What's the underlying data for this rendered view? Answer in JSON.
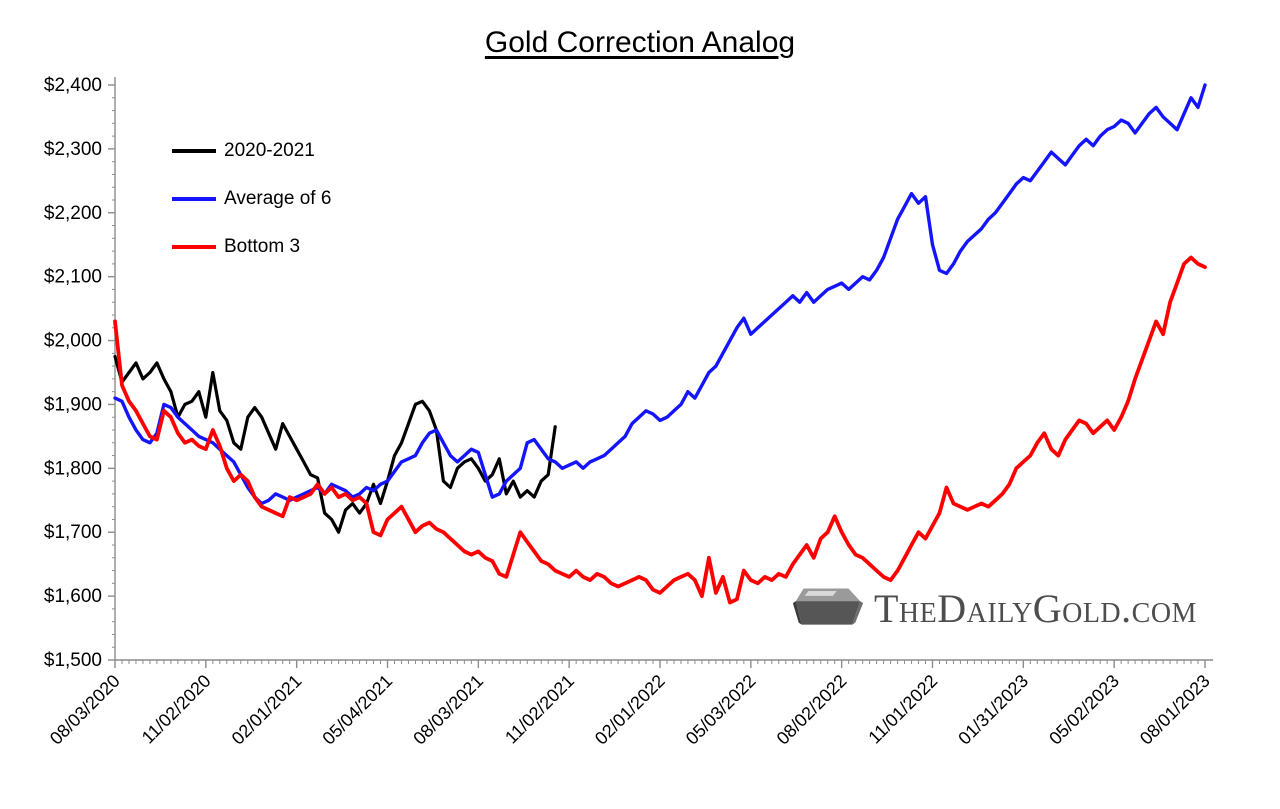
{
  "title": "Gold Correction Analog",
  "legend": [
    {
      "label": "2020-2021",
      "color": "#000000"
    },
    {
      "label": "Average of 6",
      "color": "#1414ff"
    },
    {
      "label": "Bottom 3",
      "color": "#ff0000"
    }
  ],
  "watermark": {
    "text": "TheDailyGold.com"
  },
  "chart_data": {
    "type": "line",
    "title": "Gold Correction Analog",
    "xlabel": "",
    "ylabel": "",
    "grid": false,
    "legend_position": "upper-left-inside",
    "ylim": [
      1500,
      2400
    ],
    "y_ticks": [
      1500,
      1600,
      1700,
      1800,
      1900,
      2000,
      2100,
      2200,
      2300,
      2400
    ],
    "y_tick_labels": [
      "$1,500",
      "$1,600",
      "$1,700",
      "$1,800",
      "$1,900",
      "$2,000",
      "$2,100",
      "$2,200",
      "$2,300",
      "$2,400"
    ],
    "x_range_weeks": [
      0,
      156
    ],
    "x_tick_positions_weeks": [
      0,
      13,
      26,
      39,
      52,
      65,
      78,
      91,
      104,
      117,
      130,
      143,
      156
    ],
    "x_tick_labels": [
      "08/03/2020",
      "11/02/2020",
      "02/01/2021",
      "05/04/2021",
      "08/03/2021",
      "11/02/2021",
      "02/01/2022",
      "05/03/2022",
      "08/02/2022",
      "11/01/2022",
      "01/31/2023",
      "05/02/2023",
      "08/01/2023"
    ],
    "series": [
      {
        "name": "2020-2021",
        "color": "#000000",
        "width": 3.2,
        "x_start_week": 0,
        "values_weekly": [
          1975,
          1935,
          1950,
          1965,
          1940,
          1950,
          1965,
          1940,
          1920,
          1880,
          1900,
          1905,
          1920,
          1880,
          1950,
          1890,
          1875,
          1840,
          1830,
          1880,
          1895,
          1880,
          1855,
          1830,
          1870,
          1850,
          1830,
          1810,
          1790,
          1785,
          1730,
          1720,
          1700,
          1735,
          1745,
          1730,
          1745,
          1775,
          1745,
          1780,
          1820,
          1840,
          1870,
          1900,
          1905,
          1890,
          1860,
          1780,
          1770,
          1800,
          1810,
          1815,
          1800,
          1780,
          1790,
          1815,
          1760,
          1780,
          1755,
          1765,
          1755,
          1780,
          1790,
          1865
        ]
      },
      {
        "name": "Average of 6",
        "color": "#1414ff",
        "width": 3.4,
        "x_start_week": 0,
        "values_weekly": [
          1910,
          1905,
          1880,
          1860,
          1845,
          1840,
          1855,
          1900,
          1895,
          1880,
          1870,
          1860,
          1850,
          1845,
          1840,
          1830,
          1820,
          1810,
          1790,
          1770,
          1755,
          1745,
          1750,
          1760,
          1755,
          1750,
          1755,
          1760,
          1765,
          1770,
          1760,
          1775,
          1770,
          1765,
          1755,
          1760,
          1770,
          1765,
          1775,
          1780,
          1795,
          1810,
          1815,
          1820,
          1840,
          1855,
          1860,
          1840,
          1820,
          1810,
          1820,
          1830,
          1825,
          1790,
          1755,
          1760,
          1780,
          1790,
          1800,
          1840,
          1845,
          1830,
          1815,
          1810,
          1800,
          1805,
          1810,
          1800,
          1810,
          1815,
          1820,
          1830,
          1840,
          1850,
          1870,
          1880,
          1890,
          1885,
          1875,
          1880,
          1890,
          1900,
          1920,
          1910,
          1930,
          1950,
          1960,
          1980,
          2000,
          2020,
          2035,
          2010,
          2020,
          2030,
          2040,
          2050,
          2060,
          2070,
          2060,
          2075,
          2060,
          2070,
          2080,
          2085,
          2090,
          2080,
          2090,
          2100,
          2095,
          2110,
          2130,
          2160,
          2190,
          2210,
          2230,
          2215,
          2225,
          2150,
          2110,
          2105,
          2120,
          2140,
          2155,
          2165,
          2175,
          2190,
          2200,
          2215,
          2230,
          2245,
          2255,
          2250,
          2265,
          2280,
          2295,
          2285,
          2275,
          2290,
          2305,
          2315,
          2305,
          2320,
          2330,
          2335,
          2345,
          2340,
          2325,
          2340,
          2355,
          2365,
          2350,
          2340,
          2330,
          2355,
          2380,
          2365,
          2400
        ]
      },
      {
        "name": "Bottom 3",
        "color": "#ff0000",
        "width": 3.8,
        "x_start_week": 0,
        "values_weekly": [
          2030,
          1930,
          1905,
          1890,
          1870,
          1850,
          1845,
          1890,
          1880,
          1855,
          1840,
          1845,
          1835,
          1830,
          1860,
          1835,
          1800,
          1780,
          1790,
          1780,
          1755,
          1740,
          1735,
          1730,
          1725,
          1755,
          1750,
          1755,
          1760,
          1775,
          1760,
          1770,
          1755,
          1760,
          1750,
          1755,
          1745,
          1700,
          1695,
          1720,
          1730,
          1740,
          1720,
          1700,
          1710,
          1715,
          1705,
          1700,
          1690,
          1680,
          1670,
          1665,
          1670,
          1660,
          1655,
          1635,
          1630,
          1665,
          1700,
          1685,
          1670,
          1655,
          1650,
          1640,
          1635,
          1630,
          1640,
          1630,
          1625,
          1635,
          1630,
          1620,
          1615,
          1620,
          1625,
          1630,
          1625,
          1610,
          1605,
          1615,
          1625,
          1630,
          1635,
          1625,
          1600,
          1660,
          1605,
          1630,
          1590,
          1595,
          1640,
          1625,
          1620,
          1630,
          1625,
          1635,
          1630,
          1650,
          1665,
          1680,
          1660,
          1690,
          1700,
          1725,
          1700,
          1680,
          1665,
          1660,
          1650,
          1640,
          1630,
          1625,
          1640,
          1660,
          1680,
          1700,
          1690,
          1710,
          1730,
          1770,
          1745,
          1740,
          1735,
          1740,
          1745,
          1740,
          1750,
          1760,
          1775,
          1800,
          1810,
          1820,
          1840,
          1855,
          1830,
          1820,
          1845,
          1860,
          1875,
          1870,
          1855,
          1865,
          1875,
          1860,
          1880,
          1905,
          1940,
          1970,
          2000,
          2030,
          2010,
          2060,
          2090,
          2120,
          2130,
          2120,
          2115
        ]
      }
    ]
  }
}
